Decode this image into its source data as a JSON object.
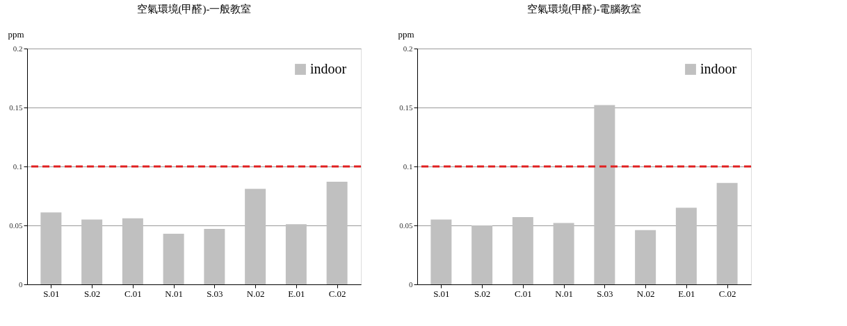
{
  "chart_data": [
    {
      "type": "bar",
      "title": "空氣環境(甲醛)-一般教室",
      "ylabel": "ppm",
      "categories": [
        "S.01",
        "S.02",
        "C.01",
        "N.01",
        "S.03",
        "N.02",
        "E.01",
        "C.02"
      ],
      "series": [
        {
          "name": "indoor",
          "color": "#c0c0c0",
          "values": [
            0.061,
            0.055,
            0.056,
            0.043,
            0.047,
            0.081,
            0.051,
            0.087
          ]
        }
      ],
      "ylim": [
        0,
        0.2
      ],
      "yticks": [
        0,
        0.05,
        0.1,
        0.15,
        0.2
      ],
      "grid": "y",
      "legend": "top right",
      "ref_lines": [
        {
          "axis": "y",
          "value": 0.1,
          "color": "#e02020",
          "line_style": "dashed"
        }
      ]
    },
    {
      "type": "bar",
      "title": "空氣環境(甲醛)-電腦教室",
      "ylabel": "ppm",
      "categories": [
        "S.01",
        "S.02",
        "C.01",
        "N.01",
        "S.03",
        "N.02",
        "E.01",
        "C.02"
      ],
      "series": [
        {
          "name": "indoor",
          "color": "#c0c0c0",
          "values": [
            0.055,
            0.05,
            0.057,
            0.052,
            0.152,
            0.046,
            0.065,
            0.086
          ]
        }
      ],
      "ylim": [
        0,
        0.2
      ],
      "yticks": [
        0,
        0.05,
        0.1,
        0.15,
        0.2
      ],
      "grid": "y",
      "legend": "top right",
      "ref_lines": [
        {
          "axis": "y",
          "value": 0.1,
          "color": "#e02020",
          "line_style": "dashed"
        }
      ]
    }
  ]
}
